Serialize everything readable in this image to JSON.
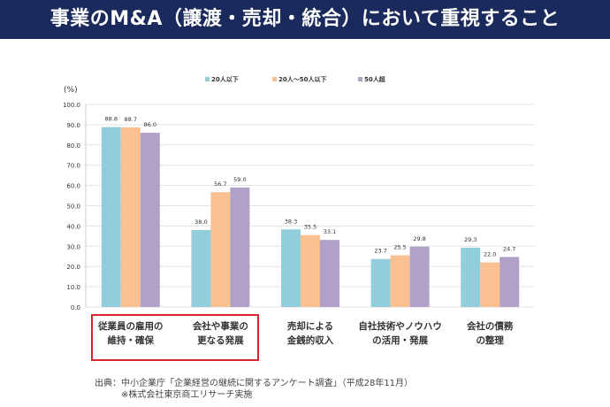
{
  "title": "事業のM&A（譲渡・売却・統合）において重視すること",
  "chart_data": {
    "type": "bar",
    "ylabel": "(%)",
    "ylim": [
      0,
      100
    ],
    "yticks": [
      "0.0",
      "10.0",
      "20.0",
      "30.0",
      "40.0",
      "50.0",
      "60.0",
      "70.0",
      "80.0",
      "90.0",
      "100.0"
    ],
    "grid": true,
    "legend_position": "top",
    "categories": [
      [
        "従業員の雇用の",
        "維持・確保"
      ],
      [
        "会社や事業の",
        "更なる発展"
      ],
      [
        "売却による",
        "金銭的収入"
      ],
      [
        "自社技術やノウハウ",
        "の活用・発展"
      ],
      [
        "会社の債務",
        "の整理"
      ]
    ],
    "series": [
      {
        "name": "20人以下",
        "color": "#92cddc",
        "values": [
          88.8,
          38.0,
          38.3,
          23.7,
          29.3
        ]
      },
      {
        "name": "20人～50人以下",
        "color": "#fac090",
        "values": [
          88.7,
          56.7,
          35.5,
          25.5,
          22.0
        ]
      },
      {
        "name": "50人超",
        "color": "#b1a0c7",
        "values": [
          86.0,
          59.0,
          33.1,
          29.8,
          24.7
        ]
      }
    ],
    "highlight_color": "#d9262c"
  },
  "source": {
    "line1": "出典：中小企業庁「企業経営の継続に関するアンケート調査」（平成28年11月）",
    "line2": "※株式会社東京商工リサーチ実施"
  }
}
